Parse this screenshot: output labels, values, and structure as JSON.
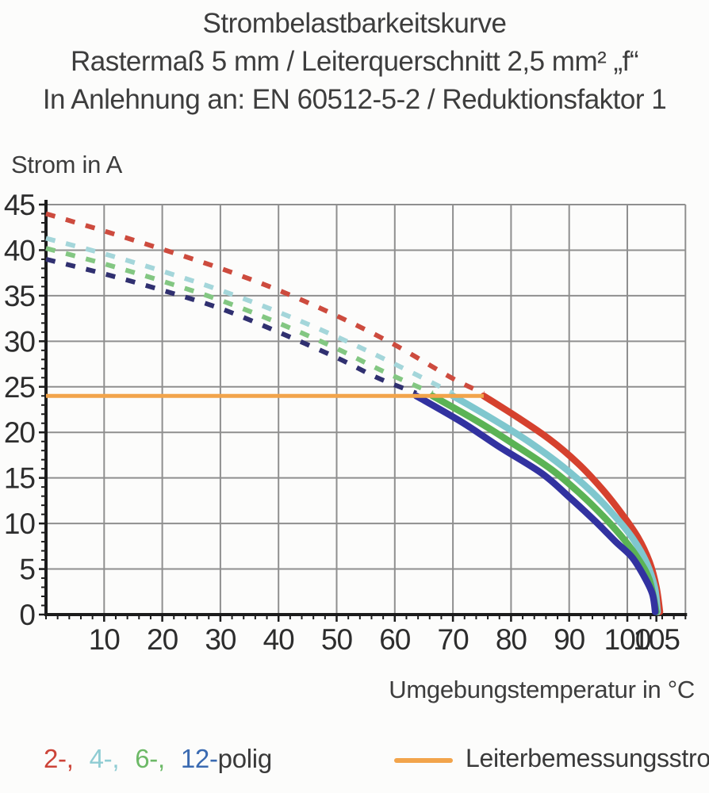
{
  "title": {
    "line1": "Strombelastbarkeitskurve",
    "line2": "Rastermaß 5 mm / Leiterquerschnitt 2,5 mm² „f“",
    "line3": "In Anlehnung an: EN 60512-5-2 / Reduktionsfaktor 1"
  },
  "y_axis_title": "Strom in A",
  "x_axis_title": "Umgebungstemperatur in °C",
  "legend": {
    "pole_items": [
      {
        "label": "2-,",
        "color": "#cc4438"
      },
      {
        "label": "4-,",
        "color": "#8fccd3"
      },
      {
        "label": "6-,",
        "color": "#6db967"
      },
      {
        "label": "12-",
        "color": "#3a6ab1"
      }
    ],
    "pole_suffix": "polig",
    "rated_label": "Leiterbemessungsstrom",
    "rated_color": "#f2a44b"
  },
  "chart_data": {
    "type": "line",
    "title": "Strombelastbarkeitskurve",
    "xlabel": "Umgebungstemperatur in °C",
    "ylabel": "Strom in A",
    "xlim": [
      0,
      110
    ],
    "ylim": [
      0,
      45
    ],
    "x_tick_labels": [
      10,
      20,
      30,
      40,
      50,
      60,
      70,
      80,
      90,
      100,
      105
    ],
    "y_tick_labels": [
      0,
      5,
      10,
      15,
      20,
      25,
      30,
      35,
      40,
      45
    ],
    "x_minor_step": 2,
    "y_minor_step": 1,
    "grid": true,
    "grid_color": "#8f8f8f",
    "axis_color": "#1c1c1c",
    "tick_label_color": "#2d2d2d",
    "rated_current_line": {
      "value": 24,
      "x_from": 0,
      "x_to": 75.3,
      "color": "#f2a44b"
    },
    "series": [
      {
        "name": "2-polig",
        "solid_color": "#d5412e",
        "dashed_color": "#cd4b3e",
        "dashed_points": [
          [
            0,
            44
          ],
          [
            10,
            42.1
          ],
          [
            20,
            40.1
          ],
          [
            30,
            38.0
          ],
          [
            40,
            35.6
          ],
          [
            50,
            32.8
          ],
          [
            60,
            29.6
          ],
          [
            70,
            25.9
          ],
          [
            75.3,
            24.3
          ]
        ],
        "solid_points": [
          [
            75.3,
            24
          ],
          [
            81,
            21.7
          ],
          [
            86.5,
            19.3
          ],
          [
            91.5,
            16.6
          ],
          [
            95.5,
            13.9
          ],
          [
            99,
            11.1
          ],
          [
            101.8,
            8.5
          ],
          [
            103.8,
            5.8
          ],
          [
            105,
            3.0
          ],
          [
            105.6,
            0.3
          ]
        ]
      },
      {
        "name": "4-polig",
        "solid_color": "#7fc7ce",
        "dashed_color": "#a4d6da",
        "dashed_points": [
          [
            0,
            41.3
          ],
          [
            10,
            39.6
          ],
          [
            20,
            37.7
          ],
          [
            30,
            35.6
          ],
          [
            40,
            33.2
          ],
          [
            50,
            30.5
          ],
          [
            60,
            27.5
          ],
          [
            70,
            24.3
          ]
        ],
        "solid_points": [
          [
            70,
            24
          ],
          [
            77,
            21.4
          ],
          [
            83,
            19.0
          ],
          [
            89,
            16.2
          ],
          [
            94,
            13.4
          ],
          [
            98,
            10.7
          ],
          [
            101,
            8.3
          ],
          [
            103.3,
            5.7
          ],
          [
            104.7,
            3.0
          ],
          [
            105.2,
            0.3
          ]
        ]
      },
      {
        "name": "6-polig",
        "solid_color": "#5bb355",
        "dashed_color": "#83c782",
        "dashed_points": [
          [
            0,
            40.2
          ],
          [
            10,
            38.5
          ],
          [
            20,
            36.6
          ],
          [
            30,
            34.5
          ],
          [
            40,
            32.0
          ],
          [
            50,
            29.2
          ],
          [
            58,
            26.7
          ],
          [
            66.5,
            24.3
          ]
        ],
        "solid_points": [
          [
            66.5,
            24
          ],
          [
            74,
            21.3
          ],
          [
            80,
            18.9
          ],
          [
            87,
            15.9
          ],
          [
            92,
            13.2
          ],
          [
            96,
            10.7
          ],
          [
            99.5,
            8.2
          ],
          [
            102,
            6.0
          ],
          [
            103.8,
            3.8
          ],
          [
            105,
            0.3
          ]
        ]
      },
      {
        "name": "12-polig",
        "solid_color": "#3232a0",
        "dashed_color": "#303070",
        "dashed_points": [
          [
            0,
            39
          ],
          [
            10,
            37.4
          ],
          [
            20,
            35.6
          ],
          [
            30,
            33.6
          ],
          [
            40,
            31.0
          ],
          [
            50,
            28.2
          ],
          [
            57,
            26.0
          ],
          [
            63.7,
            24.3
          ]
        ],
        "solid_points": [
          [
            63.7,
            24
          ],
          [
            71.6,
            21.1
          ],
          [
            78,
            18.4
          ],
          [
            85.3,
            15.5
          ],
          [
            90,
            12.9
          ],
          [
            94.4,
            10.3
          ],
          [
            98,
            8.0
          ],
          [
            100.8,
            6.3
          ],
          [
            102.8,
            4.3
          ],
          [
            104.3,
            2.3
          ],
          [
            104.8,
            0.3
          ]
        ]
      }
    ]
  }
}
